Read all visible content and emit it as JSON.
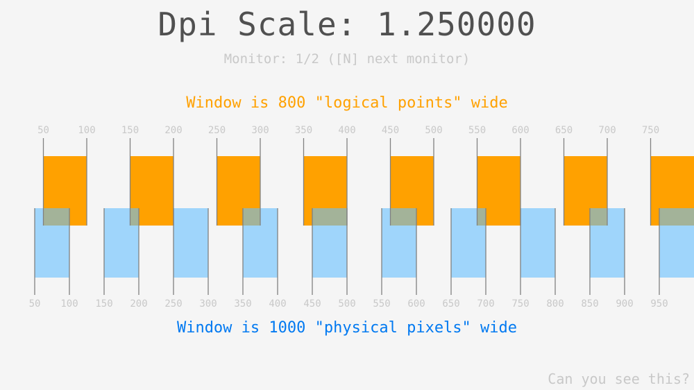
{
  "title": "Dpi Scale: 1.250000",
  "monitor_info": "Monitor: 1/2 ([N] next monitor)",
  "logical_caption": "Window is 800 \"logical points\" wide",
  "physical_caption": "Window is 1000 \"physical pixels\" wide",
  "corner_text": "Can you see this?",
  "dpi_scale": 1.25,
  "logical_ticks": [
    50,
    100,
    150,
    200,
    250,
    300,
    350,
    400,
    450,
    500,
    550,
    600,
    650,
    700,
    750
  ],
  "physical_ticks": [
    50,
    100,
    150,
    200,
    250,
    300,
    350,
    400,
    450,
    500,
    550,
    600,
    650,
    700,
    750,
    800,
    850,
    900,
    950
  ],
  "colors": {
    "logical": "#ffa100",
    "physical": "#0079f1",
    "physical_rect": "#66bfff",
    "tick_line": "#808080",
    "text": "#505050"
  }
}
